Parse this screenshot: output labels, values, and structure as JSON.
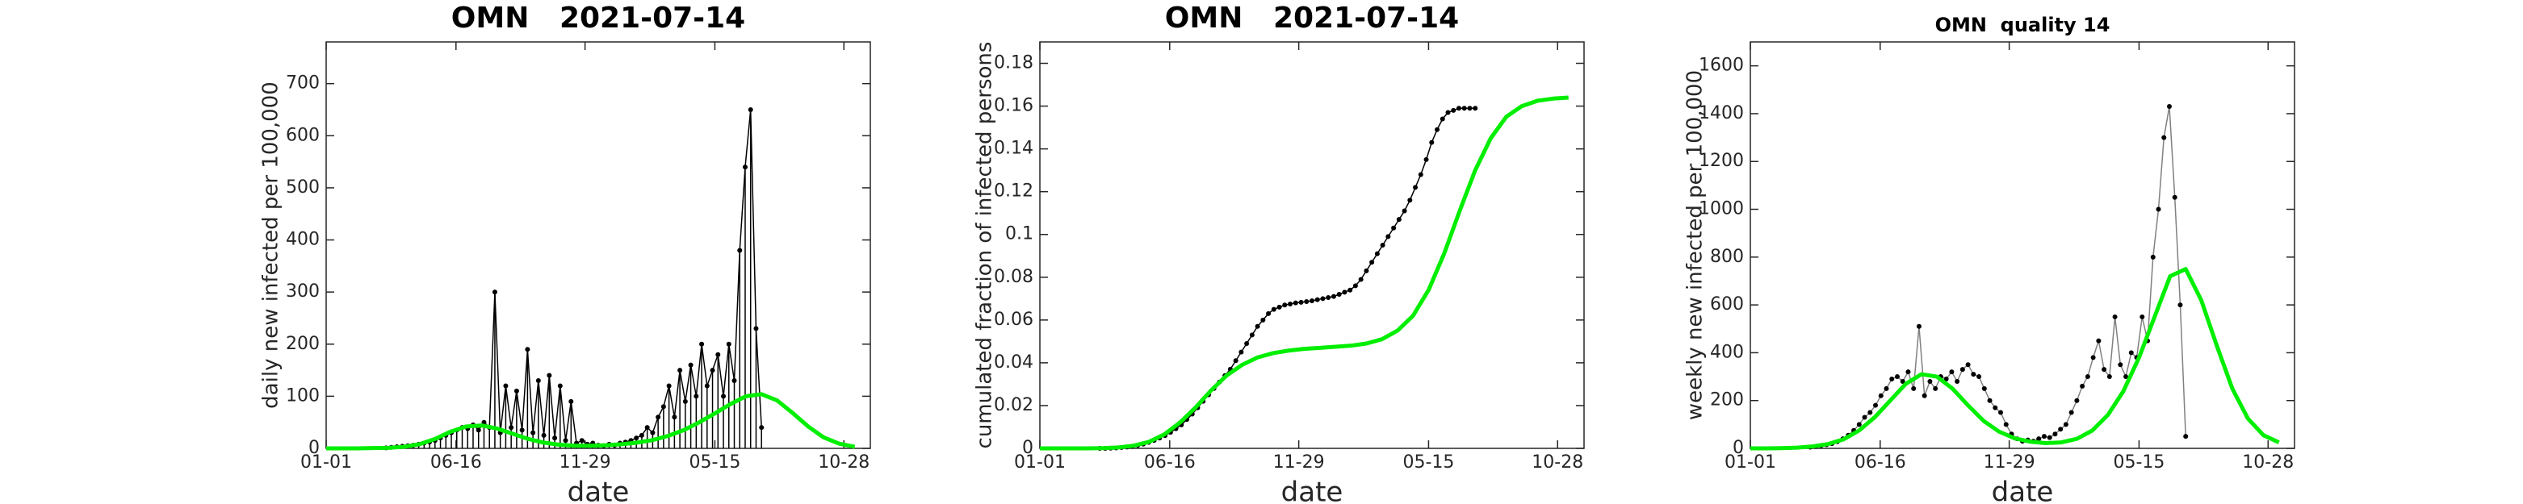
{
  "chart_data": [
    {
      "type": "line",
      "title": "OMN   2021-07-14",
      "xlabel": "date",
      "ylabel": "daily new infected per 100,000",
      "xlim": [
        0,
        700
      ],
      "ylim": [
        0,
        780
      ],
      "xticks": [
        {
          "value": 0,
          "label": "01-01"
        },
        {
          "value": 167,
          "label": "06-16"
        },
        {
          "value": 333,
          "label": "11-29"
        },
        {
          "value": 500,
          "label": "05-15"
        },
        {
          "value": 666,
          "label": "10-28"
        }
      ],
      "yticks": [
        0,
        100,
        200,
        300,
        400,
        500,
        600,
        700
      ],
      "series": [
        {
          "color": "#000000",
          "marker": true,
          "stem": true,
          "x": [
            77,
            84,
            91,
            98,
            105,
            112,
            119,
            126,
            133,
            140,
            147,
            154,
            161,
            168,
            175,
            182,
            189,
            196,
            203,
            210,
            217,
            224,
            231,
            238,
            245,
            252,
            259,
            266,
            273,
            280,
            287,
            294,
            301,
            308,
            315,
            322,
            329,
            336,
            343,
            350,
            357,
            364,
            371,
            378,
            385,
            392,
            399,
            406,
            413,
            420,
            427,
            434,
            441,
            448,
            455,
            462,
            469,
            476,
            483,
            490,
            497,
            504,
            511,
            518,
            525,
            532,
            539,
            546,
            553,
            560
          ],
          "values": [
            1,
            2,
            3,
            4,
            5,
            6,
            8,
            10,
            12,
            15,
            20,
            25,
            30,
            35,
            40,
            38,
            45,
            35,
            50,
            40,
            300,
            30,
            120,
            40,
            110,
            35,
            190,
            30,
            130,
            25,
            140,
            20,
            120,
            15,
            90,
            10,
            15,
            8,
            10,
            6,
            5,
            8,
            6,
            10,
            12,
            15,
            20,
            25,
            40,
            30,
            60,
            80,
            120,
            60,
            150,
            90,
            160,
            100,
            200,
            120,
            150,
            180,
            100,
            200,
            130,
            380,
            540,
            650,
            230,
            40
          ]
        },
        {
          "color": "#00ee00",
          "marker": false,
          "x": [
            0,
            20,
            40,
            60,
            80,
            100,
            120,
            140,
            160,
            180,
            200,
            220,
            240,
            260,
            280,
            300,
            320,
            340,
            360,
            380,
            400,
            420,
            440,
            460,
            480,
            500,
            520,
            540,
            560,
            580,
            600,
            620,
            640,
            660,
            680
          ],
          "values": [
            0,
            0,
            0,
            0.5,
            1,
            3,
            8,
            18,
            32,
            42,
            44,
            38,
            28,
            18,
            11,
            7,
            5,
            5,
            6,
            8,
            11,
            16,
            24,
            35,
            50,
            67,
            85,
            100,
            104,
            92,
            68,
            42,
            21,
            9,
            3
          ]
        }
      ]
    },
    {
      "type": "line",
      "title": "OMN   2021-07-14",
      "xlabel": "date",
      "ylabel": "cumulated fraction of infected persons",
      "xlim": [
        0,
        700
      ],
      "ylim": [
        0,
        0.19
      ],
      "xticks": [
        {
          "value": 0,
          "label": "01-01"
        },
        {
          "value": 167,
          "label": "06-16"
        },
        {
          "value": 333,
          "label": "11-29"
        },
        {
          "value": 500,
          "label": "05-15"
        },
        {
          "value": 666,
          "label": "10-28"
        }
      ],
      "yticks": [
        0,
        0.02,
        0.04,
        0.06,
        0.08,
        0.1,
        0.12,
        0.14,
        0.16,
        0.18
      ],
      "series": [
        {
          "color": "#000000",
          "marker": true,
          "stem": false,
          "x": [
            77,
            84,
            91,
            98,
            105,
            112,
            119,
            126,
            133,
            140,
            147,
            154,
            161,
            168,
            175,
            182,
            189,
            196,
            203,
            210,
            217,
            224,
            231,
            238,
            245,
            252,
            259,
            266,
            273,
            280,
            287,
            294,
            301,
            308,
            315,
            322,
            329,
            336,
            343,
            350,
            357,
            364,
            371,
            378,
            385,
            392,
            399,
            406,
            413,
            420,
            427,
            434,
            441,
            448,
            455,
            462,
            469,
            476,
            483,
            490,
            497,
            504,
            511,
            518,
            525,
            532,
            539,
            546,
            553,
            560
          ],
          "values": [
            0,
            0,
            0.0001,
            0.0002,
            0.0004,
            0.0006,
            0.001,
            0.0014,
            0.002,
            0.0028,
            0.0037,
            0.0048,
            0.006,
            0.0075,
            0.0092,
            0.011,
            0.0135,
            0.016,
            0.019,
            0.022,
            0.025,
            0.028,
            0.031,
            0.034,
            0.037,
            0.041,
            0.045,
            0.049,
            0.053,
            0.057,
            0.06,
            0.063,
            0.065,
            0.066,
            0.067,
            0.0675,
            0.068,
            0.0683,
            0.0686,
            0.069,
            0.0695,
            0.07,
            0.0705,
            0.071,
            0.072,
            0.073,
            0.074,
            0.076,
            0.079,
            0.083,
            0.087,
            0.091,
            0.095,
            0.099,
            0.103,
            0.107,
            0.111,
            0.116,
            0.122,
            0.128,
            0.135,
            0.143,
            0.149,
            0.154,
            0.157,
            0.158,
            0.159,
            0.159,
            0.159,
            0.159
          ]
        },
        {
          "color": "#00ee00",
          "marker": false,
          "x": [
            0,
            20,
            40,
            60,
            80,
            100,
            120,
            140,
            160,
            180,
            200,
            220,
            240,
            260,
            280,
            300,
            320,
            340,
            360,
            380,
            400,
            420,
            440,
            460,
            480,
            500,
            520,
            540,
            560,
            580,
            600,
            620,
            640,
            660,
            680
          ],
          "values": [
            0,
            0,
            0,
            0,
            0.0001,
            0.0004,
            0.0012,
            0.003,
            0.0065,
            0.012,
            0.019,
            0.027,
            0.034,
            0.039,
            0.0425,
            0.0445,
            0.0457,
            0.0465,
            0.047,
            0.0475,
            0.048,
            0.049,
            0.051,
            0.055,
            0.062,
            0.074,
            0.091,
            0.111,
            0.13,
            0.145,
            0.155,
            0.16,
            0.1625,
            0.1635,
            0.164
          ]
        }
      ]
    },
    {
      "type": "line",
      "title": "OMN  quality 14",
      "xlabel": "date",
      "ylabel": "weekly new infected per 100,000",
      "xlim": [
        0,
        700
      ],
      "ylim": [
        0,
        1700
      ],
      "xticks": [
        {
          "value": 0,
          "label": "01-01"
        },
        {
          "value": 167,
          "label": "06-16"
        },
        {
          "value": 333,
          "label": "11-29"
        },
        {
          "value": 500,
          "label": "05-15"
        },
        {
          "value": 666,
          "label": "10-28"
        }
      ],
      "yticks": [
        0,
        200,
        400,
        600,
        800,
        1000,
        1200,
        1400,
        1600
      ],
      "series": [
        {
          "color": "#000000",
          "line_color": "#808080",
          "marker": true,
          "stem": false,
          "x": [
            77,
            84,
            91,
            98,
            105,
            112,
            119,
            126,
            133,
            140,
            147,
            154,
            161,
            168,
            175,
            182,
            189,
            196,
            203,
            210,
            217,
            224,
            231,
            238,
            245,
            252,
            259,
            266,
            273,
            280,
            287,
            294,
            301,
            308,
            315,
            322,
            329,
            336,
            343,
            350,
            357,
            364,
            371,
            378,
            385,
            392,
            399,
            406,
            413,
            420,
            427,
            434,
            441,
            448,
            455,
            462,
            469,
            476,
            483,
            490,
            497,
            504,
            511,
            518,
            525,
            532,
            539,
            546,
            553,
            560
          ],
          "values": [
            5,
            8,
            12,
            15,
            20,
            28,
            40,
            55,
            75,
            100,
            130,
            150,
            180,
            220,
            250,
            290,
            300,
            280,
            320,
            250,
            510,
            220,
            280,
            250,
            300,
            290,
            320,
            280,
            330,
            350,
            310,
            300,
            250,
            200,
            170,
            150,
            100,
            60,
            40,
            30,
            35,
            30,
            40,
            50,
            45,
            60,
            80,
            100,
            150,
            200,
            260,
            300,
            380,
            450,
            330,
            300,
            550,
            350,
            300,
            400,
            380,
            550,
            450,
            800,
            1000,
            1300,
            1430,
            1050,
            600,
            50
          ]
        },
        {
          "color": "#00ee00",
          "marker": false,
          "x": [
            0,
            20,
            40,
            60,
            80,
            100,
            120,
            140,
            160,
            180,
            200,
            220,
            240,
            260,
            280,
            300,
            320,
            340,
            360,
            380,
            400,
            420,
            440,
            460,
            480,
            500,
            520,
            540,
            560,
            580,
            600,
            620,
            640,
            660,
            680
          ],
          "values": [
            0,
            0,
            1,
            3,
            8,
            18,
            38,
            75,
            130,
            200,
            270,
            310,
            300,
            250,
            180,
            115,
            70,
            42,
            28,
            22,
            25,
            40,
            75,
            140,
            240,
            380,
            550,
            720,
            750,
            620,
            430,
            250,
            125,
            55,
            25
          ]
        }
      ]
    }
  ]
}
